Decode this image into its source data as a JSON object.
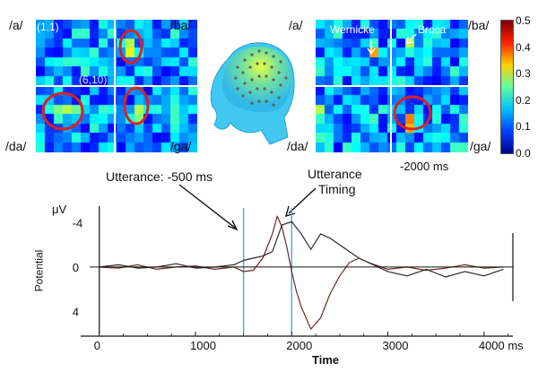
{
  "left_panel": {
    "labels": {
      "a": "/a/",
      "ba": "/ba/",
      "da": "/da/",
      "ga": "/ga/"
    },
    "cell_label_1": "(1,1)",
    "cell_label_2": "(6,10)"
  },
  "right_panel": {
    "labels": {
      "a": "/a/",
      "ba": "/ba/",
      "da": "/da/",
      "ga": "/ga/"
    },
    "wernicke": "Wernicke",
    "broca": "Broca"
  },
  "colorbar": {
    "ticks": [
      "0.5",
      "0.4",
      "0.3",
      "0.2",
      "0.1",
      "0.0"
    ],
    "colors": [
      "#7f0000",
      "#ff2000",
      "#ffd000",
      "#60ffa0",
      "#00c0ff",
      "#0040ff",
      "#00008f"
    ]
  },
  "annotations": {
    "utterance_500": "Utterance: -500 ms",
    "utterance_timing_1": "Utterance",
    "utterance_timing_2": "Timing",
    "minus_2000": "-2000 ms"
  },
  "chart_data": {
    "type": "line",
    "xlabel": "Time",
    "ylabel": "Potential",
    "unit_label": "μV",
    "x_ticks": [
      0,
      1000,
      2000,
      3000,
      4000
    ],
    "x_tick_labels": [
      "0",
      "1000",
      "2000",
      "3000",
      "4000 ms"
    ],
    "y_ticks": [
      -4,
      0,
      4
    ],
    "y_tick_labels": [
      "-4",
      "0",
      "4"
    ],
    "xlim": [
      -100,
      4300
    ],
    "ylim_inverted": [
      -5.5,
      6
    ],
    "markers_x": [
      1500,
      2000
    ],
    "series": [
      {
        "values_x": [
          0,
          200,
          400,
          600,
          800,
          1000,
          1200,
          1400,
          1500,
          1600,
          1700,
          1800,
          1850,
          1900,
          1950,
          2000,
          2050,
          2100,
          2200,
          2300,
          2400,
          2500,
          2600,
          2700,
          2800,
          3000,
          3200,
          3400,
          3600,
          3800,
          4000,
          4200
        ],
        "values_y": [
          0,
          0.1,
          -0.2,
          0.2,
          0,
          -0.1,
          0.2,
          0,
          0.4,
          0.3,
          -0.8,
          -3,
          -4.6,
          -3.6,
          -1.8,
          0.4,
          2.2,
          3.6,
          5.6,
          4.6,
          2.4,
          0.8,
          -0.4,
          -0.8,
          -0.4,
          0.2,
          0,
          0.3,
          0.1,
          -0.2,
          0.1,
          0
        ]
      },
      {
        "values_x": [
          0,
          200,
          400,
          600,
          800,
          1000,
          1200,
          1400,
          1500,
          1600,
          1700,
          1800,
          1900,
          2000,
          2100,
          2200,
          2300,
          2400,
          2500,
          2600,
          2700,
          2800,
          3000,
          3200,
          3400,
          3600,
          3800,
          4000,
          4200
        ],
        "values_y": [
          0,
          -0.2,
          0.1,
          0,
          -0.3,
          0.1,
          0,
          -0.2,
          -0.6,
          -0.8,
          -1,
          -1.4,
          -3.8,
          -4.1,
          -3,
          -1.6,
          -3,
          -2.6,
          -2,
          -1.4,
          -0.8,
          -0.4,
          0.4,
          0.8,
          0.2,
          0.9,
          0.4,
          0.8,
          0.2
        ]
      }
    ]
  }
}
